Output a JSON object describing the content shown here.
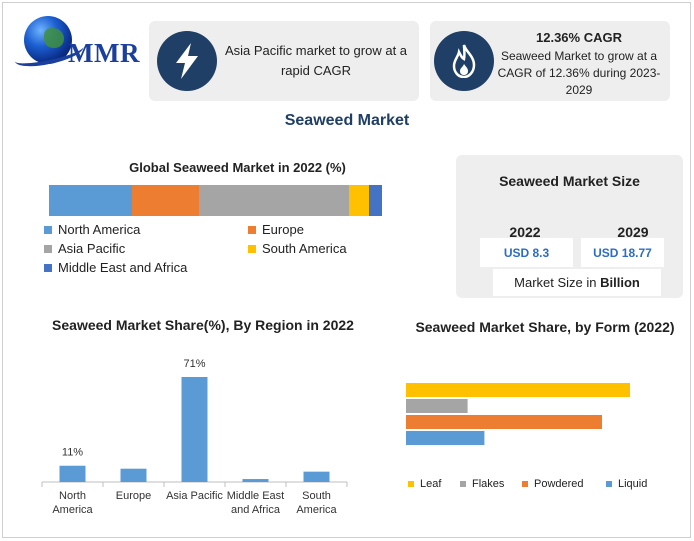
{
  "brand": {
    "logo_text": "MMR"
  },
  "cards": [
    {
      "icon": "lightning-bolt-icon",
      "text": "Asia Pacific market to grow at a rapid CAGR"
    },
    {
      "icon": "flame-icon",
      "title": "12.36% CAGR",
      "text": "Seaweed Market to grow at a CAGR of 12.36% during 2023-2029"
    }
  ],
  "main_title": "Seaweed Market",
  "market_size": {
    "title": "Seaweed Market Size",
    "year_a": "2022",
    "value_a": "USD 8.3",
    "year_b": "2029",
    "value_b": "USD 18.77",
    "footer_prefix": "Market Size in ",
    "footer_bold": "Billion"
  },
  "colors": {
    "blue": "#5b9bd5",
    "orange": "#ed7d31",
    "gray": "#a5a5a5",
    "yellow": "#ffc000",
    "dark_blue": "#4472c4",
    "icon_bg": "#1f3f66",
    "title_color": "#1f3f66"
  },
  "chart_data": [
    {
      "type": "bar",
      "orientation": "stacked-horizontal",
      "title": "Global Seaweed Market in 2022 (%)",
      "series": [
        {
          "name": "North America",
          "value": 25,
          "color": "#5b9bd5"
        },
        {
          "name": "Europe",
          "value": 20,
          "color": "#ed7d31"
        },
        {
          "name": "Asia Pacific",
          "value": 45,
          "color": "#a5a5a5"
        },
        {
          "name": "South America",
          "value": 6,
          "color": "#ffc000"
        },
        {
          "name": "Middle East and Africa",
          "value": 4,
          "color": "#4472c4"
        }
      ],
      "legend_position": "bottom"
    },
    {
      "type": "bar",
      "title": "Seaweed Market Share(%), By Region in 2022",
      "categories": [
        "North America",
        "Europe",
        "Asia Pacific",
        "Middle East and Africa",
        "South America"
      ],
      "category_labels": [
        [
          "North",
          "America"
        ],
        [
          "Europe"
        ],
        [
          "Asia Pacific"
        ],
        [
          "Middle East",
          "and Africa"
        ],
        [
          "South",
          "America"
        ]
      ],
      "values": [
        11,
        9,
        71,
        2,
        7
      ],
      "data_labels": {
        "0": "11%",
        "2": "71%"
      },
      "color": "#5b9bd5",
      "ylim": [
        0,
        80
      ],
      "grid": false
    },
    {
      "type": "bar",
      "orientation": "horizontal",
      "title": "Seaweed Market Share, by Form (2022)",
      "categories": [
        "Leaf",
        "Flakes",
        "Powdered",
        "Liquid"
      ],
      "values": [
        40,
        11,
        35,
        14
      ],
      "colors": [
        "#ffc000",
        "#a5a5a5",
        "#ed7d31",
        "#5b9bd5"
      ],
      "xlim": [
        0,
        50
      ],
      "legend_position": "bottom",
      "grid": false
    }
  ]
}
